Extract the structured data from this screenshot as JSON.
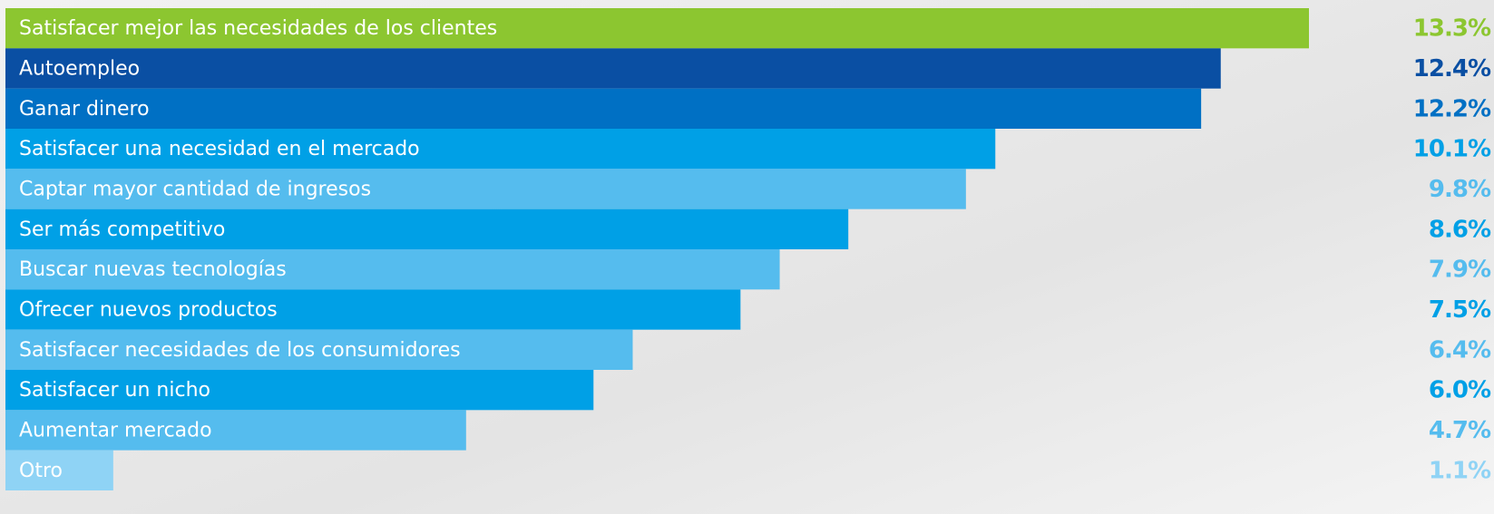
{
  "chart_data": {
    "type": "barh",
    "categories": [
      "Satisfacer mejor las necesidades de los clientes",
      "Autoempleo",
      "Ganar dinero",
      "Satisfacer una necesidad en el mercado",
      "Captar mayor cantidad de ingresos",
      "Ser más competitivo",
      "Buscar nuevas tecnologías",
      "Ofrecer nuevos productos",
      "Satisfacer necesidades de los consumidores",
      "Satisfacer un nicho",
      "Aumentar mercado",
      "Otro"
    ],
    "values": [
      13.3,
      12.4,
      12.2,
      10.1,
      9.8,
      8.6,
      7.9,
      7.5,
      6.4,
      6.0,
      4.7,
      1.1
    ],
    "value_labels": [
      "13.3%",
      "12.4%",
      "12.2%",
      "10.1%",
      "9.8%",
      "8.6%",
      "7.9%",
      "7.5%",
      "6.4%",
      "6.0%",
      "4.7%",
      "1.1%"
    ],
    "colors": [
      "#8cc630",
      "#0a4fa3",
      "#0070c4",
      "#00a0e6",
      "#55bcee",
      "#00a0e6",
      "#55bcee",
      "#00a0e6",
      "#55bcee",
      "#00a0e6",
      "#55bcee",
      "#8fd3f5"
    ]
  }
}
